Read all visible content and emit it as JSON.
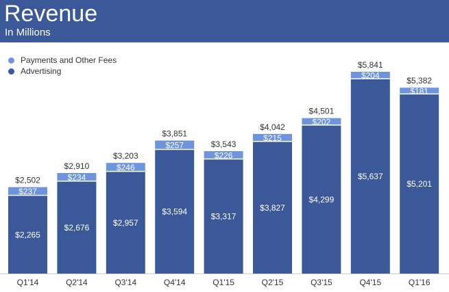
{
  "header": {
    "title": "Revenue",
    "subtitle": "In Millions"
  },
  "colors": {
    "header_bg": "#3b5998",
    "advertising": "#3b5998",
    "payments": "#6e94de"
  },
  "chart_data": {
    "type": "bar",
    "stacked": true,
    "title": "Revenue",
    "subtitle": "In Millions",
    "categories": [
      "Q1'14",
      "Q2'14",
      "Q3'14",
      "Q4'14",
      "Q1'15",
      "Q2'15",
      "Q3'15",
      "Q4'15",
      "Q1'16"
    ],
    "series": [
      {
        "name": "Advertising",
        "values": [
          2265,
          2676,
          2957,
          3594,
          3317,
          3827,
          4299,
          5637,
          5201
        ],
        "labels": [
          "$2,265",
          "$2,676",
          "$2,957",
          "$3,594",
          "$3,317",
          "$3,827",
          "$4,299",
          "$5,637",
          "$5,201"
        ]
      },
      {
        "name": "Payments and Other Fees",
        "values": [
          237,
          234,
          246,
          257,
          226,
          215,
          202,
          204,
          181
        ],
        "labels": [
          "$237",
          "$234",
          "$246",
          "$257",
          "$226",
          "$215",
          "$202",
          "$204",
          "$181"
        ]
      }
    ],
    "totals": [
      2502,
      2910,
      3203,
      3851,
      3543,
      4042,
      4501,
      5841,
      5382
    ],
    "total_labels": [
      "$2,502",
      "$2,910",
      "$3,203",
      "$3,851",
      "$3,543",
      "$4,042",
      "$4,501",
      "$5,841",
      "$5,382"
    ],
    "legend": [
      "Payments and Other Fees",
      "Advertising"
    ],
    "legend_position": "top-left",
    "ylim": [
      0,
      5841
    ],
    "grid": false,
    "xlabel": "",
    "ylabel": ""
  }
}
